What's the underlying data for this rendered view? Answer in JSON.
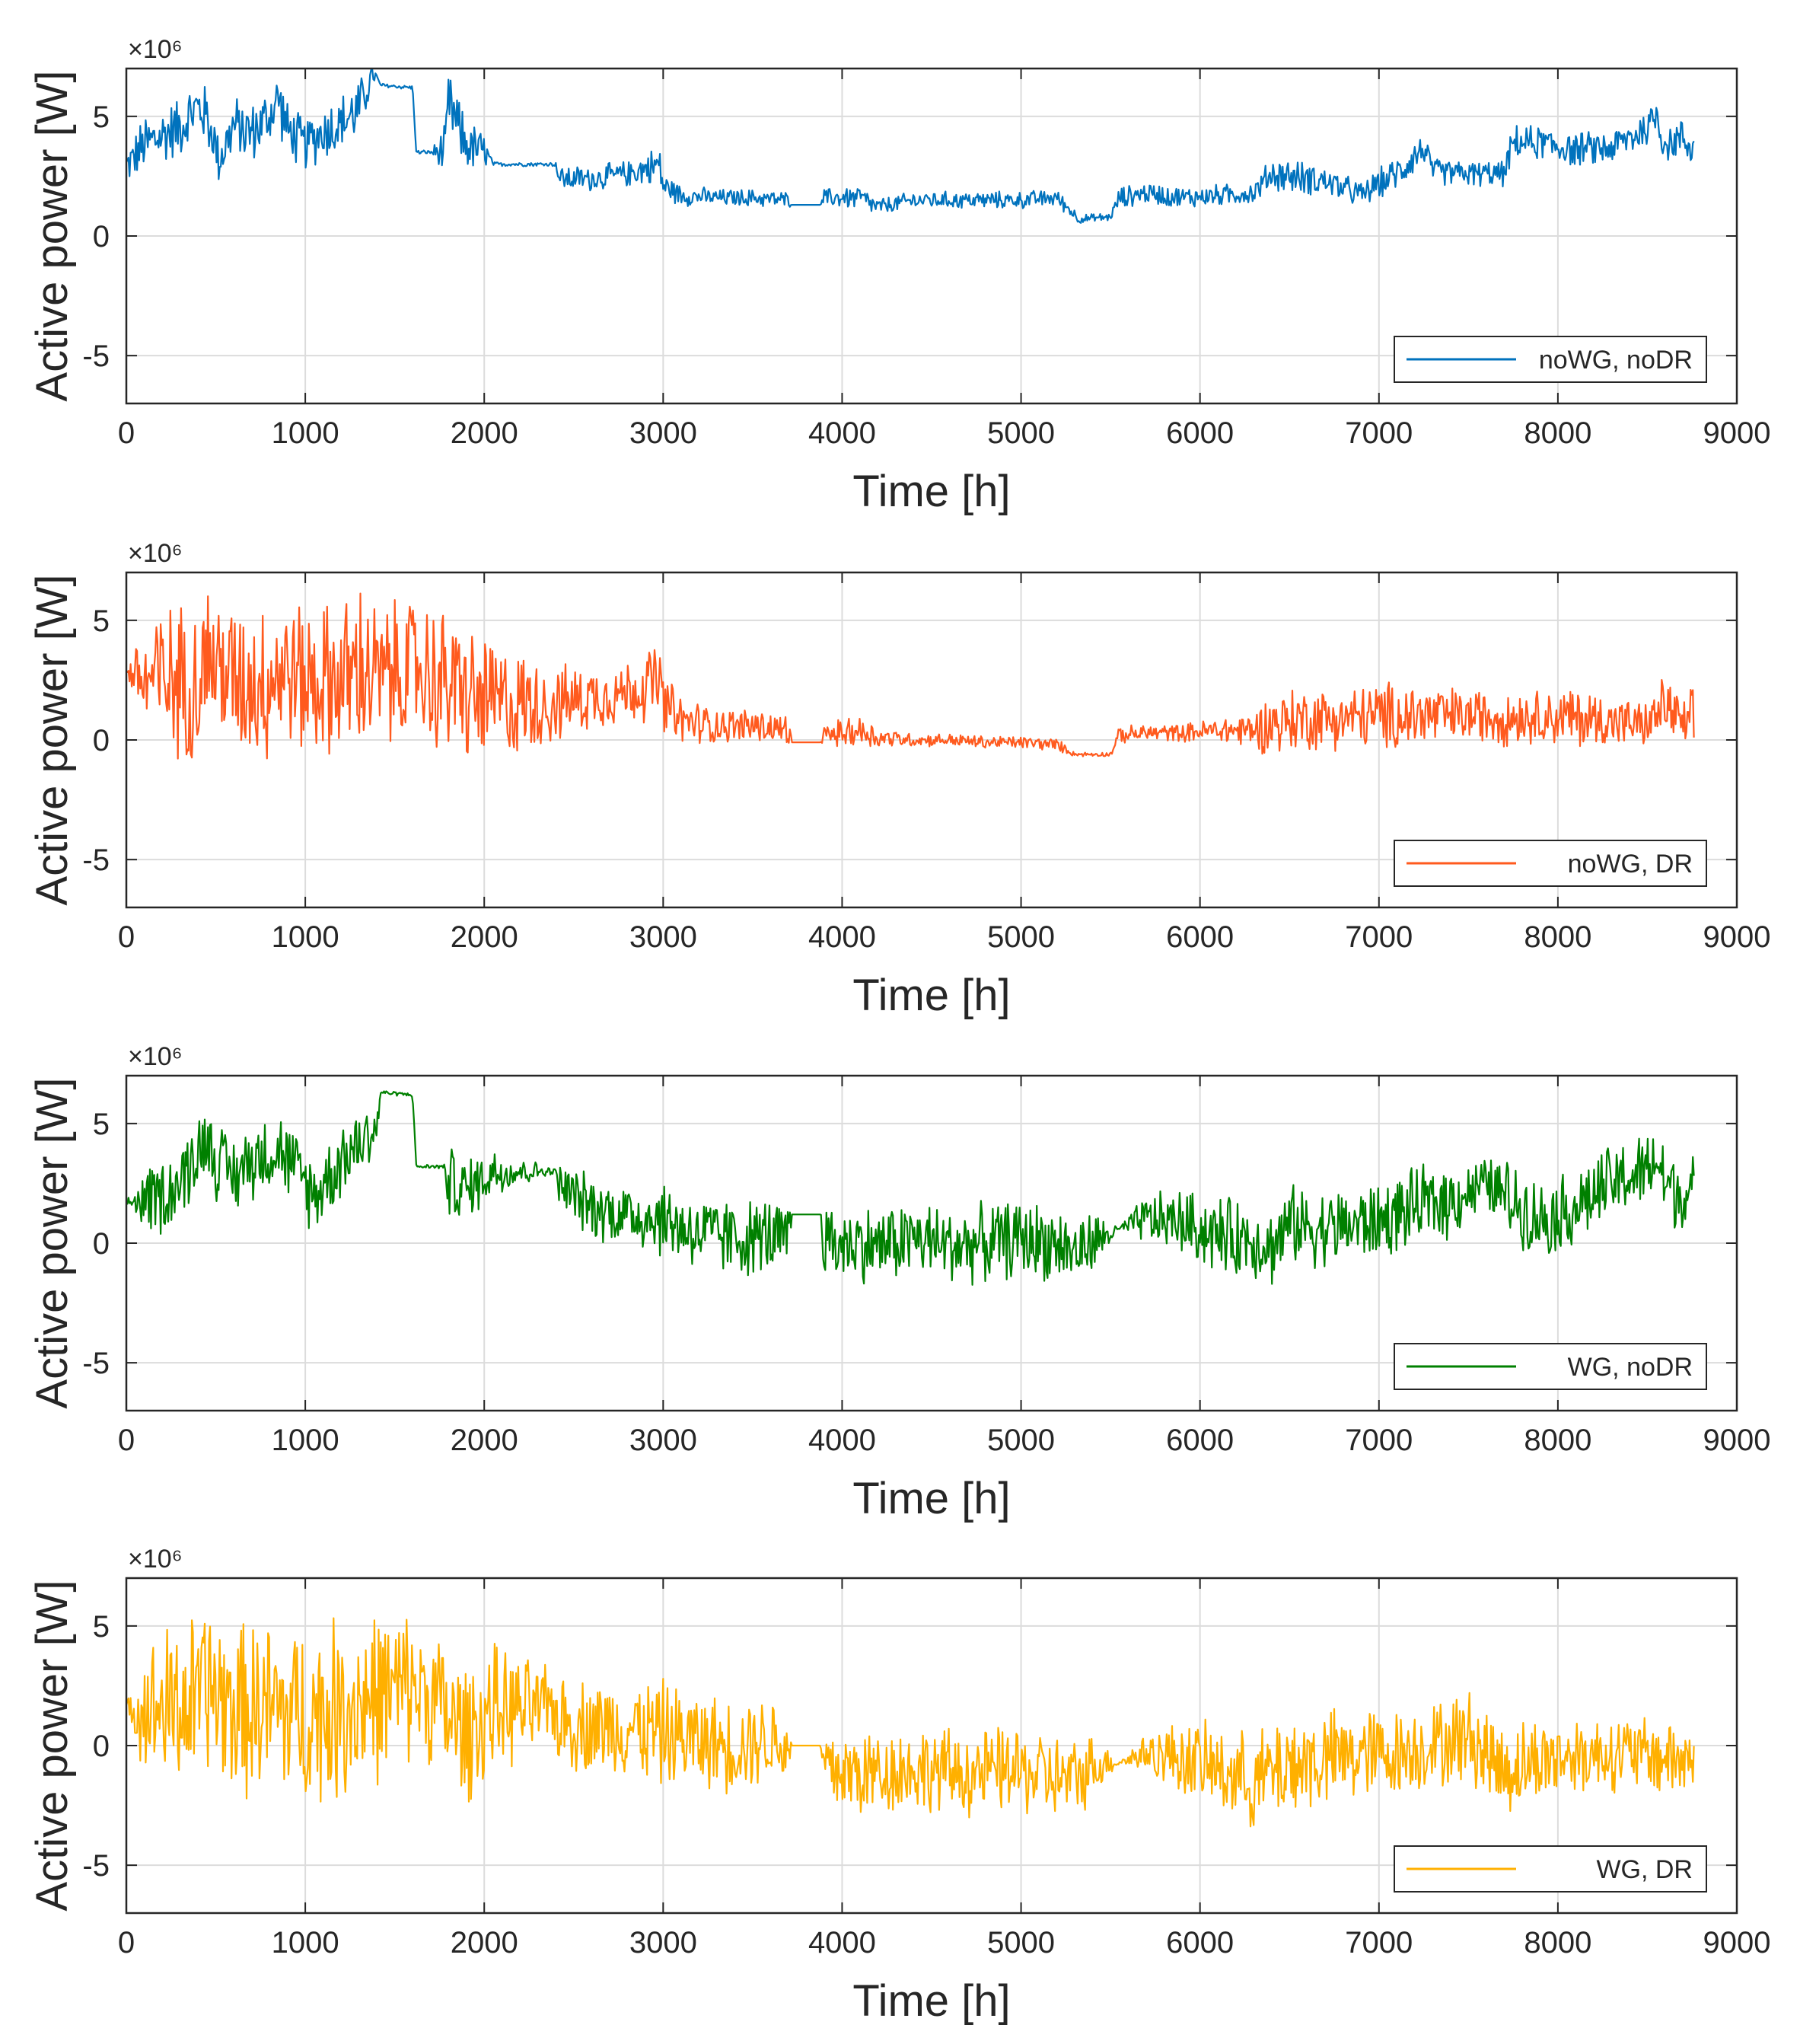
{
  "figure": {
    "chart_data": [
      {
        "type": "line",
        "title": "",
        "xlabel": "Time [h]",
        "ylabel": "Active power [W]",
        "y_exponent_label": "×10⁶",
        "xlim": [
          0,
          9000
        ],
        "ylim": [
          -7,
          7
        ],
        "xticks": [
          "0",
          "1000",
          "2000",
          "3000",
          "4000",
          "5000",
          "6000",
          "7000",
          "8000",
          "9000"
        ],
        "yticks": [
          "-5",
          "0",
          "5"
        ],
        "grid": true,
        "legend_position": "bottom-right",
        "series": [
          {
            "name": "noWG, noDR",
            "color": "#0072BD",
            "x": [
              0,
              100,
              200,
              300,
              400,
              450,
              520,
              600,
              700,
              800,
              850,
              900,
              1000,
              1100,
              1200,
              1300,
              1380,
              1420,
              1600,
              1620,
              1700,
              1780,
              1800,
              1900,
              2000,
              2050,
              2400,
              2420,
              2600,
              2800,
              2980,
              3000,
              3100,
              3300,
              3500,
              3700,
              3720,
              3880,
              3900,
              4100,
              4200,
              4400,
              4600,
              4800,
              5000,
              5200,
              5300,
              5320,
              5500,
              5550,
              5700,
              5900,
              6100,
              6300,
              6400,
              6500,
              6700,
              6900,
              7000,
              7100,
              7250,
              7300,
              7500,
              7700,
              7750,
              7900,
              8100,
              8300,
              8500,
              8550,
              8600,
              8700,
              8760
            ],
            "values": [
              2.9,
              3.8,
              4.2,
              4.6,
              5.4,
              5.0,
              3.2,
              4.6,
              4.3,
              5.0,
              5.8,
              4.4,
              3.8,
              4.4,
              4.7,
              5.3,
              6.8,
              6.3,
              6.2,
              3.5,
              3.5,
              3.5,
              5.5,
              3.8,
              3.5,
              3.0,
              3.0,
              2.4,
              2.4,
              2.6,
              3.0,
              2.1,
              1.7,
              1.6,
              1.6,
              1.5,
              1.3,
              1.3,
              1.6,
              1.6,
              1.2,
              1.5,
              1.5,
              1.5,
              1.5,
              1.6,
              0.9,
              0.7,
              0.8,
              1.6,
              1.8,
              1.6,
              1.7,
              1.8,
              2.6,
              2.5,
              2.3,
              1.7,
              2.2,
              2.6,
              3.7,
              2.7,
              2.6,
              2.6,
              3.9,
              3.9,
              3.6,
              3.7,
              4.5,
              5.1,
              3.8,
              4.1,
              3.6
            ],
            "band": [
              0.8,
              1.4,
              1.4,
              1.4,
              1.4,
              1.4,
              1.2,
              1.4,
              1.4,
              1.4,
              1.4,
              1.4,
              1.2,
              1.4,
              1.4,
              1.4,
              0.6,
              0.1,
              0.1,
              0.1,
              0.1,
              1.2,
              1.6,
              1.2,
              1.0,
              0.1,
              0.1,
              0.6,
              0.6,
              0.6,
              0.9,
              0.6,
              0.5,
              0.4,
              0.4,
              0.4,
              0.0,
              0.0,
              0.4,
              0.6,
              0.4,
              0.4,
              0.4,
              0.4,
              0.4,
              0.4,
              0.3,
              0.2,
              0.2,
              0.5,
              0.5,
              0.5,
              0.5,
              0.5,
              0.8,
              0.8,
              0.7,
              0.6,
              0.7,
              0.8,
              0.8,
              0.6,
              0.6,
              0.6,
              0.8,
              0.8,
              0.8,
              0.8,
              0.9,
              1.0,
              0.9,
              0.9,
              0.8
            ]
          }
        ]
      },
      {
        "type": "line",
        "title": "",
        "xlabel": "Time [h]",
        "ylabel": "Active power [W]",
        "y_exponent_label": "×10⁶",
        "xlim": [
          0,
          9000
        ],
        "ylim": [
          -7,
          7
        ],
        "xticks": [
          "0",
          "1000",
          "2000",
          "3000",
          "4000",
          "5000",
          "6000",
          "7000",
          "8000",
          "9000"
        ],
        "yticks": [
          "-5",
          "0",
          "5"
        ],
        "grid": true,
        "legend_position": "bottom-right",
        "series": [
          {
            "name": "noWG, DR",
            "color": "#FF5A1E",
            "x": [
              0,
              100,
              200,
              400,
              450,
              600,
              800,
              850,
              1000,
              1200,
              1350,
              1400,
              1600,
              1700,
              1780,
              1800,
              1900,
              2050,
              2400,
              2420,
              2600,
              2800,
              2980,
              3000,
              3100,
              3300,
              3500,
              3700,
              3720,
              3880,
              3900,
              4100,
              4200,
              4400,
              4600,
              4800,
              5000,
              5200,
              5300,
              5320,
              5500,
              5550,
              5700,
              5900,
              6100,
              6300,
              6400,
              6600,
              6800,
              7000,
              7200,
              7300,
              7500,
              7700,
              7900,
              8100,
              8300,
              8500,
              8600,
              8700,
              8760
            ],
            "values": [
              2.9,
              2.5,
              2.5,
              2.5,
              3.5,
              2.5,
              2.5,
              3.0,
              2.5,
              2.5,
              3.0,
              2.5,
              3.0,
              2.8,
              2.0,
              2.5,
              1.8,
              1.5,
              1.5,
              1.5,
              1.8,
              2.0,
              2.5,
              1.5,
              0.8,
              0.6,
              0.6,
              0.4,
              -0.1,
              -0.1,
              0.2,
              0.4,
              0.1,
              0.0,
              0.0,
              -0.1,
              -0.1,
              -0.2,
              -0.6,
              -0.6,
              -0.6,
              0.2,
              0.3,
              0.3,
              0.4,
              0.4,
              0.7,
              0.9,
              0.9,
              1.0,
              1.0,
              1.0,
              1.0,
              1.0,
              1.0,
              0.9,
              0.8,
              0.6,
              1.5,
              0.6,
              0.6
            ],
            "band": [
              0.1,
              2.8,
              3.5,
              3.7,
              3.5,
              3.5,
              3.8,
              3.5,
              3.5,
              3.7,
              4.2,
              3.5,
              3.3,
              3.3,
              4.0,
              3.5,
              3.2,
              3.0,
              1.8,
              1.8,
              1.5,
              1.5,
              1.8,
              1.5,
              1.2,
              0.8,
              0.8,
              0.8,
              0.0,
              0.0,
              0.5,
              0.8,
              0.5,
              0.3,
              0.3,
              0.3,
              0.3,
              0.3,
              0.1,
              0.1,
              0.1,
              0.4,
              0.4,
              0.4,
              0.6,
              0.9,
              1.5,
              1.5,
              1.4,
              1.6,
              1.6,
              1.5,
              1.2,
              1.4,
              1.2,
              1.5,
              1.2,
              1.0,
              1.5,
              1.1,
              1.8
            ]
          }
        ]
      },
      {
        "type": "line",
        "title": "",
        "xlabel": "Time [h]",
        "ylabel": "Active power [W]",
        "y_exponent_label": "×10⁶",
        "xlim": [
          0,
          9000
        ],
        "ylim": [
          -7,
          7
        ],
        "xticks": [
          "0",
          "1000",
          "2000",
          "3000",
          "4000",
          "5000",
          "6000",
          "7000",
          "8000",
          "9000"
        ],
        "yticks": [
          "-5",
          "0",
          "5"
        ],
        "grid": true,
        "legend_position": "bottom-right",
        "series": [
          {
            "name": "WG, noDR",
            "color": "#008000",
            "x": [
              0,
              100,
              200,
              300,
              450,
              500,
              600,
              700,
              850,
              900,
              1000,
              1050,
              1200,
              1300,
              1400,
              1420,
              1600,
              1620,
              1780,
              1800,
              1900,
              2050,
              2400,
              2420,
              2600,
              2800,
              3000,
              3200,
              3400,
              3600,
              3700,
              3720,
              3880,
              3900,
              4100,
              4200,
              4400,
              4600,
              4800,
              5000,
              5200,
              5300,
              5400,
              5550,
              5700,
              5900,
              6100,
              6300,
              6400,
              6500,
              6700,
              6900,
              7000,
              7200,
              7400,
              7600,
              7700,
              7900,
              8100,
              8300,
              8500,
              8550,
              8600,
              8700,
              8760
            ],
            "values": [
              1.7,
              1.8,
              2.0,
              2.5,
              4.5,
              3.5,
              2.8,
              3.5,
              4.0,
              3.5,
              2.5,
              2.0,
              3.5,
              4.2,
              4.8,
              6.3,
              6.2,
              3.2,
              3.2,
              2.5,
              2.2,
              3.0,
              3.0,
              2.4,
              1.5,
              1.2,
              1.0,
              0.4,
              0.2,
              0.3,
              0.0,
              1.2,
              1.2,
              0.0,
              0.0,
              -0.1,
              0.2,
              -0.1,
              0.0,
              0.2,
              0.0,
              -0.4,
              0.0,
              0.6,
              1.0,
              0.9,
              0.3,
              0.2,
              -0.2,
              0.8,
              0.6,
              0.8,
              0.9,
              1.5,
              1.8,
              2.5,
              2.0,
              1.0,
              1.5,
              2.5,
              3.0,
              3.5,
              2.5,
              2.0,
              2.0
            ],
            "band": [
              0.1,
              1.5,
              1.8,
              1.8,
              1.8,
              1.8,
              1.8,
              1.8,
              1.8,
              1.8,
              1.8,
              1.8,
              1.8,
              1.8,
              1.2,
              0.1,
              0.1,
              0.1,
              0.1,
              1.8,
              1.5,
              1.2,
              0.1,
              1.2,
              1.5,
              1.5,
              1.8,
              1.8,
              1.8,
              1.8,
              1.8,
              0.0,
              0.0,
              1.8,
              1.8,
              1.8,
              1.8,
              1.8,
              1.8,
              1.8,
              1.8,
              1.5,
              1.5,
              0.1,
              1.2,
              1.5,
              1.8,
              1.8,
              1.8,
              1.8,
              1.8,
              1.8,
              1.8,
              1.8,
              1.8,
              1.2,
              1.8,
              1.8,
              1.8,
              1.8,
              1.8,
              1.8,
              1.8,
              1.8,
              1.8
            ]
          }
        ]
      },
      {
        "type": "line",
        "title": "",
        "xlabel": "Time [h]",
        "ylabel": "Active power [W]",
        "y_exponent_label": "×10⁶",
        "xlim": [
          0,
          9000
        ],
        "ylim": [
          -7,
          7
        ],
        "xticks": [
          "0",
          "1000",
          "2000",
          "3000",
          "4000",
          "5000",
          "6000",
          "7000",
          "8000",
          "9000"
        ],
        "yticks": [
          "-5",
          "0",
          "5"
        ],
        "grid": true,
        "legend_position": "bottom-right",
        "series": [
          {
            "name": "WG, DR",
            "color": "#FFB000",
            "x": [
              0,
              100,
              200,
              400,
              450,
              600,
              800,
              1000,
              1200,
              1350,
              1400,
              1600,
              1700,
              1780,
              1800,
              1900,
              2050,
              2400,
              2420,
              2600,
              2800,
              3000,
              3200,
              3400,
              3600,
              3700,
              3720,
              3880,
              3900,
              4100,
              4300,
              4500,
              4700,
              4900,
              5100,
              5300,
              5400,
              5550,
              5700,
              5900,
              6100,
              6300,
              6500,
              6700,
              6900,
              7100,
              7300,
              7500,
              7700,
              7900,
              8100,
              8300,
              8500,
              8700,
              8760
            ],
            "values": [
              1.7,
              1.5,
              1.5,
              1.8,
              2.5,
              1.5,
              1.5,
              1.2,
              1.5,
              2.0,
              2.0,
              2.5,
              2.0,
              1.5,
              1.0,
              0.5,
              1.5,
              1.5,
              1.0,
              0.8,
              0.8,
              0.5,
              0.2,
              0.0,
              0.3,
              -0.2,
              0.0,
              0.0,
              -1.0,
              -1.2,
              -1.0,
              -1.0,
              -1.2,
              -1.0,
              -1.2,
              -1.5,
              -0.8,
              -0.7,
              -0.3,
              -0.5,
              -1.0,
              -1.5,
              -0.8,
              -0.6,
              -0.4,
              -0.3,
              0.0,
              0.4,
              -1.0,
              -0.6,
              -0.4,
              -0.3,
              -0.4,
              -0.6,
              -0.5
            ],
            "band": [
              0.1,
              2.8,
              3.8,
              4.2,
              4.0,
              4.0,
              4.2,
              4.2,
              4.3,
              4.2,
              4.0,
              3.5,
              3.0,
              3.5,
              3.5,
              3.2,
              3.0,
              1.8,
              2.2,
              2.2,
              2.2,
              2.5,
              2.2,
              2.2,
              2.0,
              1.5,
              0.0,
              0.0,
              2.0,
              2.2,
              2.0,
              2.0,
              2.0,
              2.0,
              2.0,
              2.0,
              1.5,
              0.1,
              1.0,
              1.8,
              2.0,
              2.2,
              2.5,
              2.3,
              2.2,
              2.0,
              2.0,
              2.2,
              2.2,
              2.0,
              1.8,
              1.8,
              1.8,
              2.0,
              2.0
            ]
          }
        ]
      }
    ]
  }
}
